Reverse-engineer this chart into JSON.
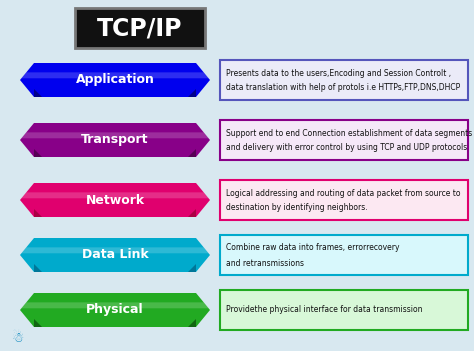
{
  "title": "TCP/IP",
  "background_color": "#d8e8f0",
  "layers": [
    {
      "name": "Application",
      "label_color": "#0000ee",
      "label_dark": "#00008a",
      "label_light": "#4444ff",
      "box_border_color": "#5555bb",
      "box_fill_color": "#ebebf8",
      "description_line1": "Presents data to the users,Encoding and Session Controlt ,",
      "description_line2": "data translation with help of protols i.e HTTPs,FTP,DNS,DHCP"
    },
    {
      "name": "Transport",
      "label_color": "#880088",
      "label_dark": "#550055",
      "label_light": "#aa22aa",
      "box_border_color": "#880088",
      "box_fill_color": "#f5e8f8",
      "description_line1": "Support end to end Connection establishment of data segments",
      "description_line2": "and delivery with error control by using TCP and UDP protocols"
    },
    {
      "name": "Network",
      "label_color": "#e0006e",
      "label_dark": "#aa0044",
      "label_light": "#ff44aa",
      "box_border_color": "#e0006e",
      "box_fill_color": "#fce8f2",
      "description_line1": "Logical addressing and routing of data packet from source to",
      "description_line2": "destination by identifying neighbors."
    },
    {
      "name": "Data Link",
      "label_color": "#00aacc",
      "label_dark": "#007799",
      "label_light": "#44ccee",
      "box_border_color": "#00aacc",
      "box_fill_color": "#d8f8fc",
      "description_line1": "Combine raw data into frames, errorrecovery",
      "description_line2": "and retransmissions"
    },
    {
      "name": "Physical",
      "label_color": "#22aa22",
      "label_dark": "#116611",
      "label_light": "#44cc44",
      "box_border_color": "#22aa22",
      "box_fill_color": "#d8f8d8",
      "description_line1": "Providethe physical interface for data transmission",
      "description_line2": ""
    }
  ]
}
